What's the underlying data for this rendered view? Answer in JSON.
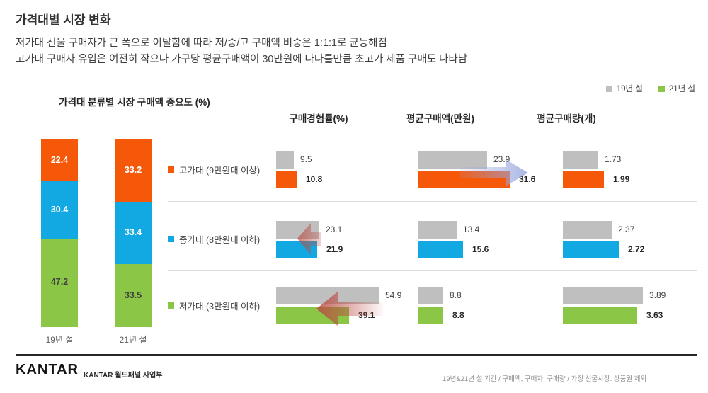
{
  "slide": {
    "title": "가격대별 시장 변화",
    "subtitle_line1": "저가대 선물 구매자가 큰 폭으로 이탈함에 따라 저/중/고 구매액 비중은 1:1:1로 균등해짐",
    "subtitle_line2": "고가대 구매자 유입은 여전히 작으나 가구당 평균구매액이 30만원에 다다를만큼 초고가 제품 구매도 나타남"
  },
  "legend": {
    "items": [
      {
        "label": "19년 설",
        "color": "#BFBFBF"
      },
      {
        "label": "21년 설",
        "color": "#8CC646"
      }
    ]
  },
  "tiers": [
    {
      "label": "고가대 (9만원대 이상)",
      "color": "#F6580A"
    },
    {
      "label": "중가대 (8만원대 이하)",
      "color": "#12A9E2"
    },
    {
      "label": "저가대 (3만원대 이하)",
      "color": "#8CC646"
    }
  ],
  "chart_data": [
    {
      "type": "bar",
      "subtype": "stacked-column",
      "title": "가격대 분류별 시장 구매액 중요도 (%)",
      "categories": [
        "19년 설",
        "21년 설"
      ],
      "ylim": [
        0,
        100
      ],
      "series": [
        {
          "name": "고가대",
          "color": "#F6580A",
          "value_label_color": "#FFFFFF",
          "values": [
            22.4,
            33.2
          ]
        },
        {
          "name": "중가대",
          "color": "#12A9E2",
          "value_label_color": "#FFFFFF",
          "values": [
            30.4,
            33.4
          ]
        },
        {
          "name": "저가대",
          "color": "#8CC646",
          "value_label_color": "#404040",
          "values": [
            47.2,
            33.5
          ]
        }
      ]
    },
    {
      "type": "bar",
      "subtype": "horizontal-grouped",
      "title": "구매경험률(%)",
      "categories": [
        "고가대",
        "중가대",
        "저가대"
      ],
      "series": [
        {
          "name": "19년 설",
          "color": "#BFBFBF",
          "values": [
            9.5,
            23.1,
            54.9
          ]
        },
        {
          "name": "21년 설",
          "values": [
            10.8,
            21.9,
            39.1
          ]
        }
      ],
      "annotations": [
        {
          "row": "중가대",
          "type": "decrease-arrow",
          "color": "#B94B41"
        },
        {
          "row": "저가대",
          "type": "decrease-arrow",
          "color": "#B94B41"
        }
      ]
    },
    {
      "type": "bar",
      "subtype": "horizontal-grouped",
      "title": "평균구매액(만원)",
      "categories": [
        "고가대",
        "중가대",
        "저가대"
      ],
      "series": [
        {
          "name": "19년 설",
          "color": "#BFBFBF",
          "values": [
            23.9,
            13.4,
            8.8
          ]
        },
        {
          "name": "21년 설",
          "values": [
            31.6,
            15.6,
            8.8
          ]
        }
      ],
      "annotations": [
        {
          "row": "고가대",
          "type": "increase-arrow",
          "color": "#96A5DC"
        }
      ]
    },
    {
      "type": "bar",
      "subtype": "horizontal-grouped",
      "title": "평균구매량(개)",
      "categories": [
        "고가대",
        "중가대",
        "저가대"
      ],
      "series": [
        {
          "name": "19년 설",
          "color": "#BFBFBF",
          "values": [
            "1.73",
            "2.37",
            "3.89"
          ]
        },
        {
          "name": "21년 설",
          "values": [
            "1.99",
            "2.72",
            "3.63"
          ]
        }
      ],
      "annotations": []
    }
  ],
  "footer": {
    "logo": "KANTAR",
    "department": "KANTAR 월드패널 사업부",
    "note": "19년&21년 설 기간 / 구매액, 구매자, 구매량 / 가정 선물시장. 상품권 제외"
  }
}
